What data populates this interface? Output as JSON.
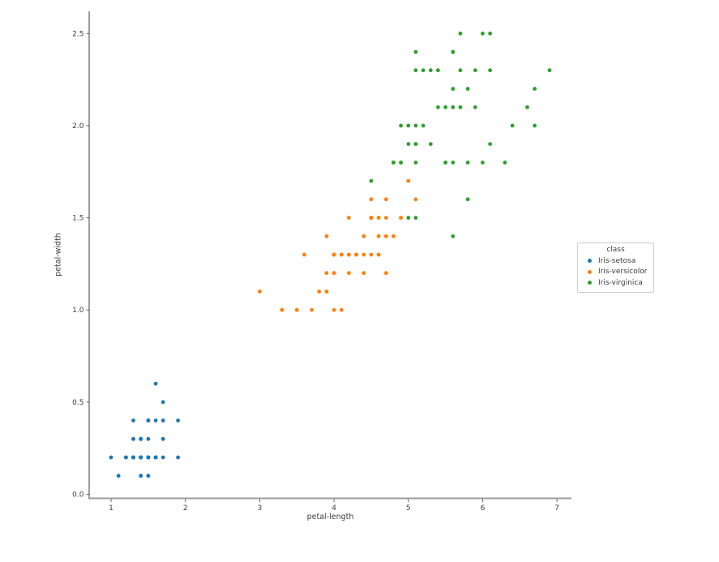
{
  "chart_data": {
    "type": "scatter",
    "title": "",
    "xlabel": "petal-length",
    "ylabel": "petal-width",
    "xlim": [
      0.705,
      7.195
    ],
    "ylim": [
      -0.02,
      2.62
    ],
    "xticks": [
      1,
      2,
      3,
      4,
      5,
      6,
      7
    ],
    "yticks": [
      0.0,
      0.5,
      1.0,
      1.5,
      2.0,
      2.5
    ],
    "grid": false,
    "legend": {
      "title": "class",
      "position": "right",
      "entries": [
        {
          "label": "Iris-setosa",
          "color": "#1f77b4"
        },
        {
          "label": "Iris-versicolor",
          "color": "#ff7f0e"
        },
        {
          "label": "Iris-virginica",
          "color": "#2ca02c"
        }
      ]
    },
    "series": [
      {
        "name": "Iris-setosa",
        "color": "#1f77b4",
        "points": [
          [
            1.4,
            0.2
          ],
          [
            1.4,
            0.2
          ],
          [
            1.3,
            0.2
          ],
          [
            1.5,
            0.2
          ],
          [
            1.4,
            0.2
          ],
          [
            1.7,
            0.4
          ],
          [
            1.4,
            0.3
          ],
          [
            1.5,
            0.2
          ],
          [
            1.4,
            0.2
          ],
          [
            1.5,
            0.1
          ],
          [
            1.5,
            0.2
          ],
          [
            1.6,
            0.2
          ],
          [
            1.4,
            0.1
          ],
          [
            1.1,
            0.1
          ],
          [
            1.2,
            0.2
          ],
          [
            1.5,
            0.4
          ],
          [
            1.3,
            0.4
          ],
          [
            1.4,
            0.3
          ],
          [
            1.7,
            0.3
          ],
          [
            1.5,
            0.3
          ],
          [
            1.7,
            0.2
          ],
          [
            1.5,
            0.4
          ],
          [
            1.0,
            0.2
          ],
          [
            1.7,
            0.5
          ],
          [
            1.9,
            0.2
          ],
          [
            1.6,
            0.2
          ],
          [
            1.6,
            0.4
          ],
          [
            1.5,
            0.2
          ],
          [
            1.4,
            0.2
          ],
          [
            1.6,
            0.2
          ],
          [
            1.6,
            0.2
          ],
          [
            1.5,
            0.4
          ],
          [
            1.5,
            0.1
          ],
          [
            1.4,
            0.2
          ],
          [
            1.5,
            0.2
          ],
          [
            1.2,
            0.2
          ],
          [
            1.3,
            0.2
          ],
          [
            1.4,
            0.1
          ],
          [
            1.3,
            0.2
          ],
          [
            1.5,
            0.2
          ],
          [
            1.3,
            0.3
          ],
          [
            1.3,
            0.3
          ],
          [
            1.3,
            0.2
          ],
          [
            1.6,
            0.6
          ],
          [
            1.9,
            0.4
          ],
          [
            1.4,
            0.3
          ],
          [
            1.6,
            0.2
          ],
          [
            1.4,
            0.2
          ],
          [
            1.5,
            0.2
          ],
          [
            1.4,
            0.2
          ]
        ]
      },
      {
        "name": "Iris-versicolor",
        "color": "#ff7f0e",
        "points": [
          [
            4.7,
            1.4
          ],
          [
            4.5,
            1.5
          ],
          [
            4.9,
            1.5
          ],
          [
            4.0,
            1.3
          ],
          [
            4.6,
            1.5
          ],
          [
            4.5,
            1.3
          ],
          [
            4.7,
            1.6
          ],
          [
            3.3,
            1.0
          ],
          [
            4.6,
            1.3
          ],
          [
            3.9,
            1.4
          ],
          [
            3.5,
            1.0
          ],
          [
            4.2,
            1.5
          ],
          [
            4.0,
            1.0
          ],
          [
            4.7,
            1.4
          ],
          [
            3.6,
            1.3
          ],
          [
            4.4,
            1.4
          ],
          [
            4.5,
            1.5
          ],
          [
            4.1,
            1.0
          ],
          [
            4.5,
            1.5
          ],
          [
            3.9,
            1.1
          ],
          [
            4.8,
            1.8
          ],
          [
            4.0,
            1.3
          ],
          [
            4.9,
            1.5
          ],
          [
            4.7,
            1.2
          ],
          [
            4.3,
            1.3
          ],
          [
            4.4,
            1.4
          ],
          [
            4.8,
            1.4
          ],
          [
            5.0,
            1.7
          ],
          [
            4.5,
            1.5
          ],
          [
            3.5,
            1.0
          ],
          [
            3.8,
            1.1
          ],
          [
            3.7,
            1.0
          ],
          [
            3.9,
            1.2
          ],
          [
            5.1,
            1.6
          ],
          [
            4.5,
            1.5
          ],
          [
            4.5,
            1.6
          ],
          [
            4.7,
            1.5
          ],
          [
            4.4,
            1.3
          ],
          [
            4.1,
            1.3
          ],
          [
            4.0,
            1.3
          ],
          [
            4.4,
            1.2
          ],
          [
            4.6,
            1.4
          ],
          [
            4.0,
            1.2
          ],
          [
            3.3,
            1.0
          ],
          [
            4.2,
            1.3
          ],
          [
            4.2,
            1.2
          ],
          [
            4.2,
            1.3
          ],
          [
            4.3,
            1.3
          ],
          [
            3.0,
            1.1
          ],
          [
            4.1,
            1.3
          ]
        ]
      },
      {
        "name": "Iris-virginica",
        "color": "#2ca02c",
        "points": [
          [
            6.0,
            2.5
          ],
          [
            5.1,
            1.9
          ],
          [
            5.9,
            2.1
          ],
          [
            5.6,
            1.8
          ],
          [
            5.8,
            2.2
          ],
          [
            6.6,
            2.1
          ],
          [
            4.5,
            1.7
          ],
          [
            6.3,
            1.8
          ],
          [
            5.8,
            1.8
          ],
          [
            6.1,
            2.5
          ],
          [
            5.1,
            2.0
          ],
          [
            5.3,
            1.9
          ],
          [
            5.5,
            2.1
          ],
          [
            5.0,
            2.0
          ],
          [
            5.1,
            2.4
          ],
          [
            5.3,
            2.3
          ],
          [
            5.5,
            1.8
          ],
          [
            6.7,
            2.2
          ],
          [
            6.9,
            2.3
          ],
          [
            5.0,
            1.5
          ],
          [
            5.7,
            2.3
          ],
          [
            4.9,
            2.0
          ],
          [
            6.7,
            2.0
          ],
          [
            4.9,
            1.8
          ],
          [
            5.7,
            2.1
          ],
          [
            6.0,
            1.8
          ],
          [
            4.8,
            1.8
          ],
          [
            4.9,
            1.8
          ],
          [
            5.6,
            2.1
          ],
          [
            5.8,
            1.6
          ],
          [
            6.1,
            1.9
          ],
          [
            6.4,
            2.0
          ],
          [
            5.6,
            2.2
          ],
          [
            5.1,
            1.5
          ],
          [
            5.6,
            1.4
          ],
          [
            6.1,
            2.3
          ],
          [
            5.6,
            2.4
          ],
          [
            5.5,
            1.8
          ],
          [
            4.8,
            1.8
          ],
          [
            5.4,
            2.1
          ],
          [
            5.6,
            2.4
          ],
          [
            5.1,
            2.3
          ],
          [
            5.1,
            1.9
          ],
          [
            5.9,
            2.3
          ],
          [
            5.7,
            2.5
          ],
          [
            5.2,
            2.3
          ],
          [
            5.0,
            1.9
          ],
          [
            5.2,
            2.0
          ],
          [
            5.4,
            2.3
          ],
          [
            5.1,
            1.8
          ]
        ]
      }
    ]
  }
}
